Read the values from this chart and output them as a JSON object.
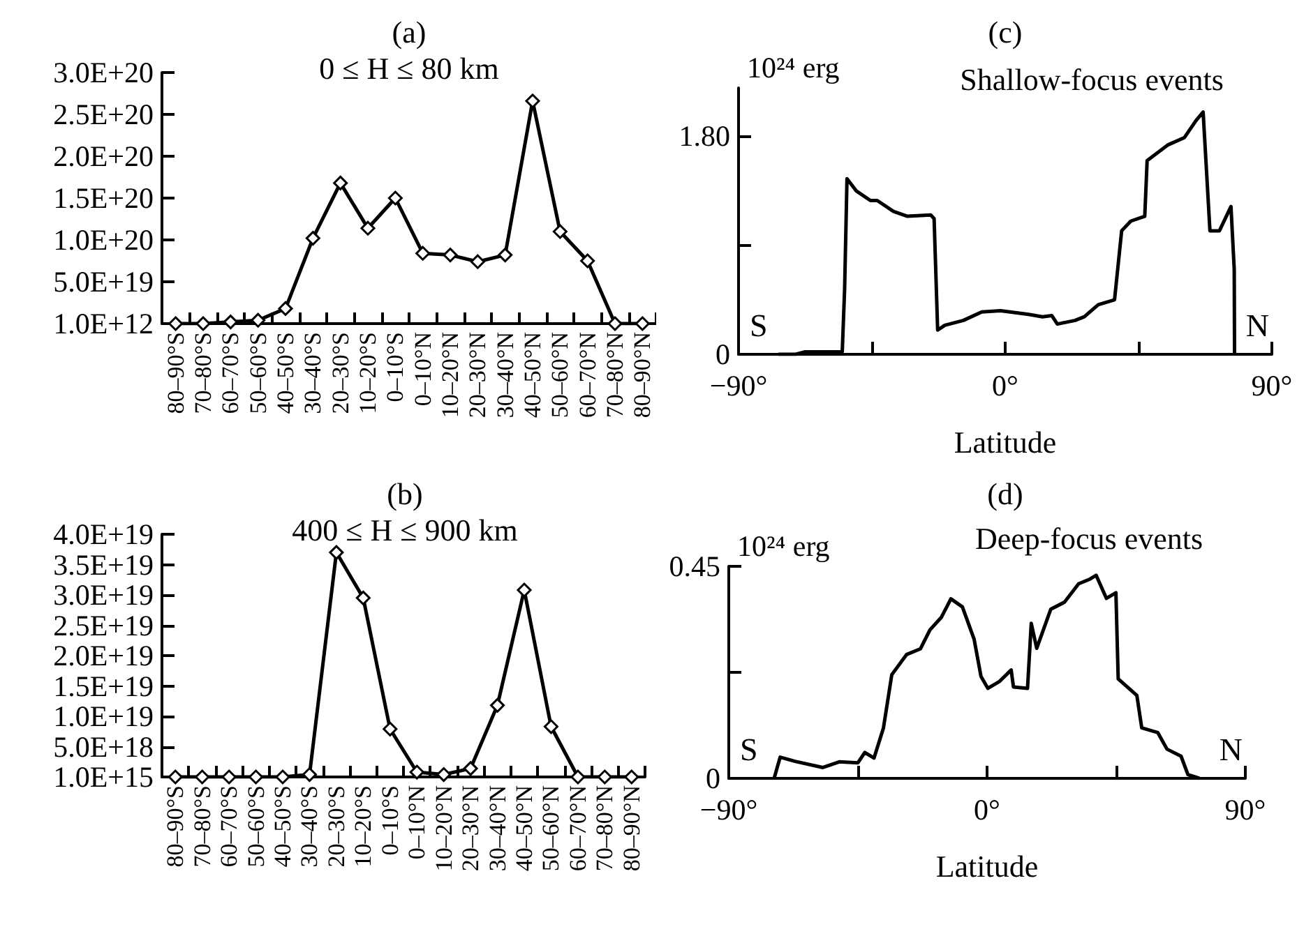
{
  "chart_data": [
    {
      "type": "line",
      "title": "(a)",
      "subtitle": "0 ≤ H ≤ 80 km",
      "categories": [
        "80–90°S",
        "70–80°S",
        "60–70°S",
        "50–60°S",
        "40–50°S",
        "30–40°S",
        "20–30°S",
        "10–20°S",
        "0–10°S",
        "0–10°N",
        "10–20°N",
        "20–30°N",
        "30–40°N",
        "40–50°N",
        "50–60°N",
        "60–70°N",
        "70–80°N",
        "80–90°N"
      ],
      "series": [
        {
          "color": "#000000",
          "values": [
            1000000000000.0,
            1000000000000.0,
            2e+18,
            4e+18,
            1.8e+19,
            1.02e+20,
            1.68e+20,
            1.14e+20,
            1.5e+20,
            8.4e+19,
            8.2e+19,
            7.4e+19,
            8.2e+19,
            2.66e+20,
            1.1e+20,
            7.5e+19,
            1000000000000.0,
            1000000000000.0
          ]
        }
      ],
      "ylim": [
        1000000000000.0,
        3e+20
      ],
      "yticks": [
        {
          "value": 1000000000000.0,
          "label": "1.0E+12"
        },
        {
          "value": 5e+19,
          "label": "5.0E+19"
        },
        {
          "value": 1e+20,
          "label": "1.0E+20"
        },
        {
          "value": 1.5e+20,
          "label": "1.5E+20"
        },
        {
          "value": 2e+20,
          "label": "2.0E+20"
        },
        {
          "value": 2.5e+20,
          "label": "2.5E+20"
        },
        {
          "value": 3e+20,
          "label": "3.0E+20"
        }
      ],
      "marker": "diamond",
      "grid": false
    },
    {
      "type": "line",
      "title": "(b)",
      "subtitle": "400 ≤ H ≤ 900 km",
      "categories": [
        "80–90°S",
        "70–80°S",
        "60–70°S",
        "50–60°S",
        "40–50°S",
        "30–40°S",
        "20–30°S",
        "10–20°S",
        "0–10°S",
        "0–10°N",
        "10–20°N",
        "20–30°N",
        "30–40°N",
        "40–50°N",
        "50–60°N",
        "60–70°N",
        "70–80°N",
        "80–90°N"
      ],
      "series": [
        {
          "color": "#000000",
          "values": [
            1000000000000000.0,
            1000000000000000.0,
            1000000000000000.0,
            1000000000000000.0,
            1000000000000000.0,
            4e+17,
            3.7e+19,
            2.95e+19,
            7.9e+18,
            8e+17,
            4e+17,
            1.4e+18,
            1.18e+19,
            3.08e+19,
            8.3e+18,
            1000000000000000.0,
            1000000000000000.0,
            1000000000000000.0
          ]
        }
      ],
      "ylim": [
        1000000000000000.0,
        4e+19
      ],
      "yticks": [
        {
          "value": 1000000000000000.0,
          "label": "1.0E+15"
        },
        {
          "value": 5e+18,
          "label": "5.0E+18"
        },
        {
          "value": 1e+19,
          "label": "1.0E+19"
        },
        {
          "value": 1.5e+19,
          "label": "1.5E+19"
        },
        {
          "value": 2e+19,
          "label": "2.0E+19"
        },
        {
          "value": 2.5e+19,
          "label": "2.5E+19"
        },
        {
          "value": 3e+19,
          "label": "3.0E+19"
        },
        {
          "value": 3.5e+19,
          "label": "3.5E+19"
        },
        {
          "value": 4e+19,
          "label": "4.0E+19"
        }
      ],
      "marker": "diamond",
      "grid": false
    },
    {
      "type": "line",
      "title": "(c)",
      "subtitle": "Shallow-focus events",
      "xlabel": "Latitude",
      "ylabel": "10²⁴ erg",
      "annotations": [
        "S",
        "N"
      ],
      "series": [
        {
          "color": "#000000",
          "x": [
            -76.6,
            -70.7,
            -67.5,
            -55,
            -54.2,
            -53.4,
            -50.3,
            -45.5,
            -43.2,
            -37.7,
            -33,
            -25.1,
            -24,
            -22.8,
            -20.4,
            -14.1,
            -7.9,
            -1.6,
            7.9,
            12.6,
            15.7,
            17.6,
            23.6,
            26.7,
            31.4,
            36.9,
            39.3,
            42.4,
            47.1,
            47.9,
            55,
            60.5,
            64.4,
            66.8,
            69.1,
            72.3,
            76.2,
            77.3,
            77.4
          ],
          "values": [
            0,
            0,
            0.02,
            0.02,
            0.54,
            1.45,
            1.35,
            1.27,
            1.27,
            1.18,
            1.14,
            1.15,
            1.12,
            0.2,
            0.24,
            0.28,
            0.35,
            0.36,
            0.33,
            0.31,
            0.32,
            0.25,
            0.28,
            0.31,
            0.41,
            0.45,
            1.02,
            1.1,
            1.14,
            1.6,
            1.73,
            1.79,
            1.93,
            2.0,
            1.02,
            1.02,
            1.22,
            0.7,
            0
          ]
        }
      ],
      "xlim": [
        -90,
        90
      ],
      "xticks": [
        {
          "value": -90,
          "label": "−90°"
        },
        {
          "value": -45,
          "label": null
        },
        {
          "value": 0,
          "label": "0°"
        },
        {
          "value": 45,
          "label": null
        },
        {
          "value": 90,
          "label": "90°"
        }
      ],
      "ylim": [
        0,
        2.2
      ],
      "yticks": [
        0,
        {
          "value": 0.9,
          "label": null
        },
        {
          "value": 1.8,
          "label": "1.80"
        }
      ],
      "marker": "none",
      "grid": false
    },
    {
      "type": "line",
      "title": "(d)",
      "subtitle": "Deep-focus events",
      "xlabel": "Latitude",
      "ylabel": "10²⁴ erg",
      "annotations": [
        "S",
        "N"
      ],
      "series": [
        {
          "color": "#000000",
          "x": [
            -74.2,
            -72.1,
            -66.9,
            -57.2,
            -51.5,
            -45,
            -42.6,
            -39.4,
            -36.1,
            -33.2,
            -28,
            -23.2,
            -19.9,
            -15.9,
            -12.6,
            -8.6,
            -4.5,
            -2.1,
            0.3,
            4.4,
            8.4,
            9.2,
            14.1,
            15.4,
            17.3,
            22.2,
            27,
            31.9,
            35.9,
            38,
            41.6,
            44.9,
            45.7,
            52.2,
            53.9,
            59.5,
            62.7,
            67.6,
            70,
            74
          ],
          "values": [
            0,
            0.045,
            0.036,
            0.023,
            0.035,
            0.033,
            0.055,
            0.043,
            0.107,
            0.22,
            0.263,
            0.275,
            0.315,
            0.342,
            0.381,
            0.364,
            0.295,
            0.216,
            0.191,
            0.206,
            0.23,
            0.194,
            0.191,
            0.329,
            0.276,
            0.359,
            0.374,
            0.413,
            0.423,
            0.431,
            0.382,
            0.394,
            0.211,
            0.176,
            0.107,
            0.097,
            0.062,
            0.047,
            0.008,
            0
          ]
        }
      ],
      "xlim": [
        -90,
        90
      ],
      "xticks": [
        {
          "value": -90,
          "label": "−90°"
        },
        {
          "value": -45,
          "label": null
        },
        {
          "value": 0,
          "label": "0°"
        },
        {
          "value": 45,
          "label": null
        },
        {
          "value": 90,
          "label": "90°"
        }
      ],
      "ylim": [
        0,
        0.45
      ],
      "yticks": [
        0,
        {
          "value": 0.225,
          "label": null
        },
        {
          "value": 0.45,
          "label": "0.45"
        }
      ],
      "marker": "none",
      "grid": false
    }
  ]
}
